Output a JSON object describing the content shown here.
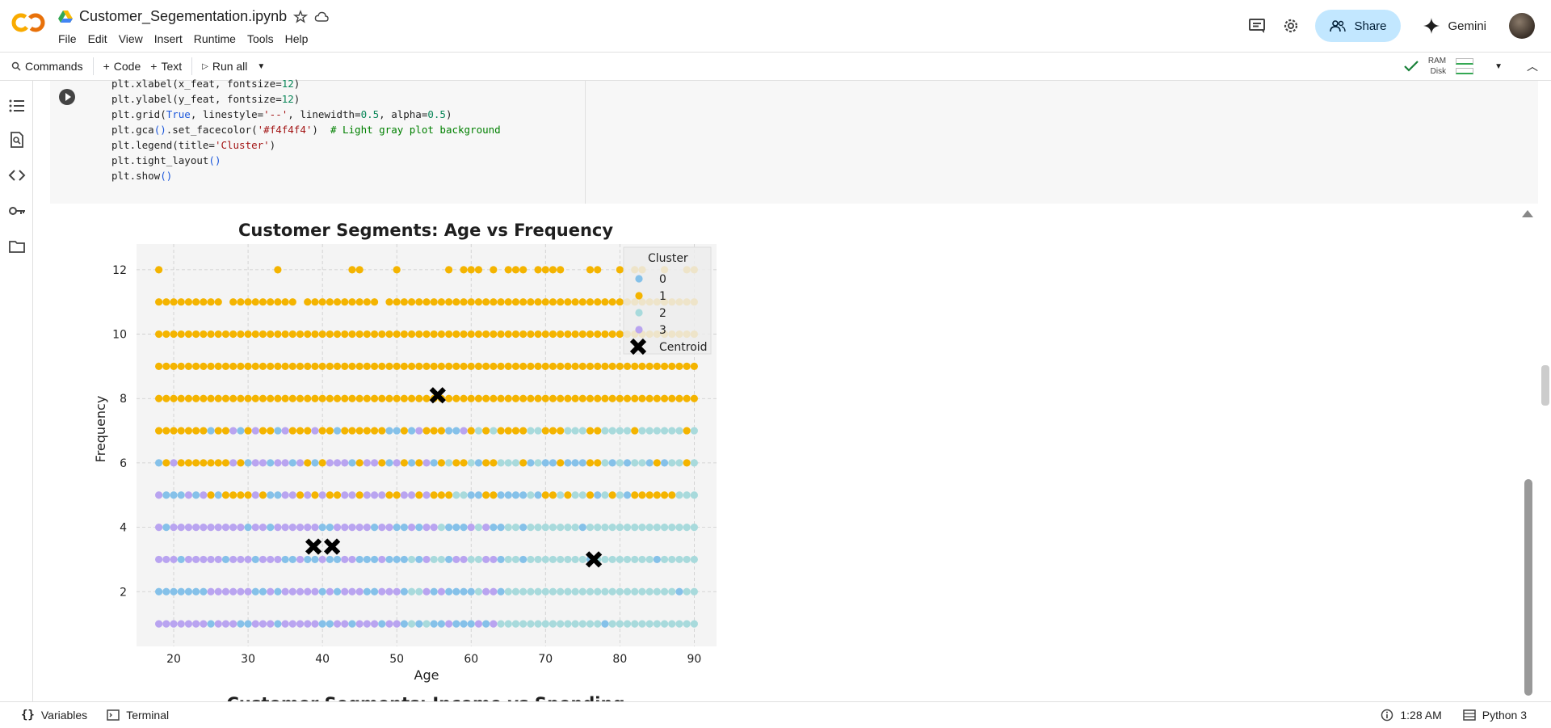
{
  "app": {
    "file_name": "Customer_Segementation.ipynb",
    "menu": [
      "File",
      "Edit",
      "View",
      "Insert",
      "Runtime",
      "Tools",
      "Help"
    ],
    "share_label": "Share",
    "gemini_label": "Gemini"
  },
  "toolbar": {
    "commands_label": "Commands",
    "code_label": "Code",
    "text_label": "Text",
    "run_all_label": "Run all",
    "ram_label": "RAM",
    "disk_label": "Disk"
  },
  "code_lines": [
    "plt.xlabel(x_feat, fontsize=12)",
    "plt.ylabel(y_feat, fontsize=12)",
    "plt.grid(True, linestyle='--', linewidth=0.5, alpha=0.5)",
    "plt.gca().set_facecolor('#f4f4f4')  # Light gray plot background",
    "plt.legend(title='Cluster')",
    "plt.tight_layout()",
    "plt.show()"
  ],
  "chart_data": {
    "type": "scatter",
    "title": "Customer Segments: Age vs Frequency",
    "xlabel": "Age",
    "ylabel": "Frequency",
    "xlim": [
      15,
      93
    ],
    "ylim": [
      0.3,
      12.8
    ],
    "xticks": [
      20,
      30,
      40,
      50,
      60,
      70,
      80,
      90
    ],
    "yticks": [
      2,
      4,
      6,
      8,
      10,
      12
    ],
    "background": "#f4f4f4",
    "legend": {
      "title": "Cluster",
      "placement": "top-right",
      "entries": [
        {
          "label": "0",
          "color": "#85c1e9"
        },
        {
          "label": "1",
          "color": "#f4b400"
        },
        {
          "label": "2",
          "color": "#a8dadc"
        },
        {
          "label": "3",
          "color": "#b9a4f0"
        },
        {
          "label": "Centroid",
          "color": "#000000"
        }
      ]
    },
    "series": [
      {
        "name": "0",
        "color": "#85c1e9",
        "note_rows": [
          1,
          2,
          3,
          4,
          5,
          6,
          7
        ]
      },
      {
        "name": "1",
        "color": "#f4b400",
        "note_rows": [
          5,
          6,
          7,
          8,
          9,
          10,
          11,
          12
        ]
      },
      {
        "name": "2",
        "color": "#a8dadc",
        "note_rows": [
          1,
          2,
          3,
          4,
          5,
          6,
          7
        ]
      },
      {
        "name": "3",
        "color": "#b9a4f0",
        "note_rows": [
          1,
          2,
          3,
          4,
          5,
          6,
          7
        ]
      }
    ],
    "centroids": [
      {
        "x": 55.5,
        "y": 8.1
      },
      {
        "x": 38.8,
        "y": 3.4
      },
      {
        "x": 41.3,
        "y": 3.4
      },
      {
        "x": 76.5,
        "y": 3.0
      }
    ]
  },
  "status": {
    "variables_label": "Variables",
    "terminal_label": "Terminal",
    "time": "1:28 AM",
    "kernel": "Python 3"
  },
  "next_title_partial": "Customer Segments: Income vs Spending"
}
